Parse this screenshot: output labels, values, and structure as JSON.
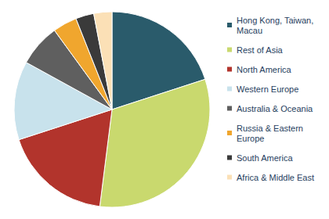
{
  "chart_data": {
    "type": "pie",
    "categories": [
      "Hong Kong, Taiwan, Macau",
      "Rest of Asia",
      "North America",
      "Western Europe",
      "Australia & Oceania",
      "Russia & Eastern Europe",
      "South America",
      "Africa & Middle East"
    ],
    "values": [
      20,
      32,
      18,
      13,
      7,
      4,
      3,
      3
    ],
    "colors": [
      "#2a5b6b",
      "#c9d96e",
      "#b2342c",
      "#c8e2ec",
      "#5f5f5f",
      "#f0a62e",
      "#3a3a3a",
      "#fbe0b6"
    ],
    "legend": "right"
  }
}
